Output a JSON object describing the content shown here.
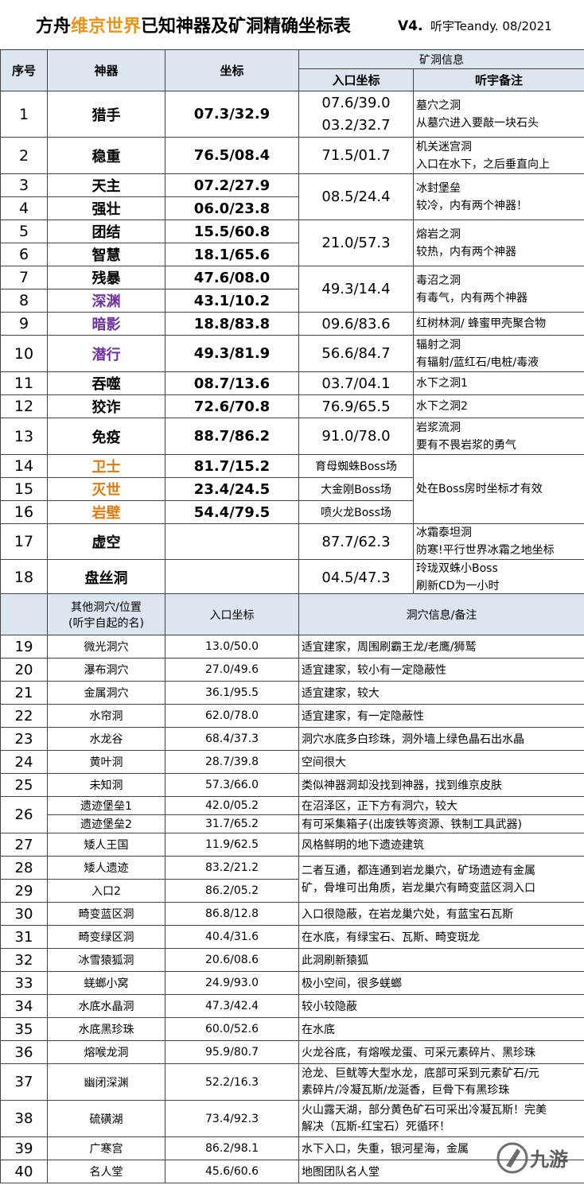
{
  "title": {
    "prefix": "方舟",
    "highlight": "维京世界",
    "suffix": "已知神器及矿洞精确坐标表",
    "version": "V4.",
    "author_date": "听宇Teandy. 08/2021"
  },
  "colors": {
    "header_bg": "#dce6f1",
    "title_highlight": "#e8961a",
    "purple": "#7030a0",
    "orange": "#e07a10"
  },
  "header1": {
    "idx": "序号",
    "weapon": "神器",
    "coord": "坐标",
    "cave_info": "矿洞信息",
    "entry": "入口坐标",
    "note": "听宇备注"
  },
  "rows": {
    "r1": {
      "idx": "1",
      "name": "猎手",
      "coord": "07.3/32.9",
      "entry_a": "07.6/39.0",
      "entry_b": "03.2/32.7",
      "note_a": "墓穴之洞",
      "note_b": "从墓穴进入要敲一块石头"
    },
    "r2": {
      "idx": "2",
      "name": "稳重",
      "coord": "76.5/08.4",
      "entry": "71.5/01.7",
      "note_a": "机关迷宫洞",
      "note_b": "入口在水下，之后垂直向上"
    },
    "r3": {
      "idx": "3",
      "name": "天主",
      "coord": "07.2/27.9"
    },
    "r4": {
      "idx": "4",
      "name": "强壮",
      "coord": "06.0/23.8"
    },
    "r34": {
      "entry": "08.5/24.4",
      "note_a": "冰封堡垒",
      "note_b": "较冷，内有两个神器！"
    },
    "r5": {
      "idx": "5",
      "name": "团结",
      "coord": "15.5/60.8"
    },
    "r6": {
      "idx": "6",
      "name": "智慧",
      "coord": "18.1/65.6"
    },
    "r56": {
      "entry": "21.0/57.3",
      "note_a": "熔岩之洞",
      "note_b": "较热，内有两个神器"
    },
    "r7": {
      "idx": "7",
      "name": "残暴",
      "coord": "47.6/08.0"
    },
    "r8": {
      "idx": "8",
      "name": "深渊",
      "coord": "43.1/10.2"
    },
    "r78": {
      "entry": "49.3/14.4",
      "note_a": "毒沼之洞",
      "note_b": "有毒气，内有两个神器"
    },
    "r9": {
      "idx": "9",
      "name": "暗影",
      "coord": "18.8/83.8",
      "entry": "09.6/83.6",
      "note": "红树林洞/ 蜂蜜甲壳聚合物"
    },
    "r10": {
      "idx": "10",
      "name": "潜行",
      "coord": "49.3/81.9",
      "entry": "56.6/84.7",
      "note_a": "辐射之洞",
      "note_b": "有辐射/蓝红石/电桩/毒液"
    },
    "r11": {
      "idx": "11",
      "name": "吞噬",
      "coord": "08.7/13.6",
      "entry": "03.7/04.1",
      "note": "水下之洞1"
    },
    "r12": {
      "idx": "12",
      "name": "狡诈",
      "coord": "72.6/70.8",
      "entry": "76.9/65.5",
      "note": "水下之洞2"
    },
    "r13": {
      "idx": "13",
      "name": "免疫",
      "coord": "88.7/86.2",
      "entry": "91.0/78.0",
      "note_a": "岩浆流洞",
      "note_b": "要有不畏岩浆的勇气"
    },
    "r14": {
      "idx": "14",
      "name": "卫士",
      "coord": "81.7/15.2",
      "entry": "育母蜘蛛Boss场"
    },
    "r15": {
      "idx": "15",
      "name": "灭世",
      "coord": "23.4/24.5",
      "entry": "大金刚Boss场"
    },
    "r16": {
      "idx": "16",
      "name": "岩壁",
      "coord": "54.4/79.5",
      "entry": "喷火龙Boss场"
    },
    "r1416": {
      "note": "处在Boss房时坐标才有效"
    },
    "r17": {
      "idx": "17",
      "name": "虚空",
      "coord": "",
      "entry": "87.7/62.3",
      "note_a": "冰霜泰坦洞",
      "note_b": "防寒!平行世界冰霜之地坐标"
    },
    "r18": {
      "idx": "18",
      "name": "盘丝洞",
      "coord": "",
      "entry": "04.5/47.3",
      "note_a": "玲珑双蛛小Boss",
      "note_b": "刷新CD为一小时"
    }
  },
  "header2": {
    "other_a": "其他洞穴/位置",
    "other_b": "(听宇自起的名)",
    "entry": "入口坐标",
    "info": "洞穴信息/备注"
  },
  "caves": {
    "c19": {
      "idx": "19",
      "name": "微光洞穴",
      "entry": "13.0/50.0",
      "note": "适宜建家，周围刷霸王龙/老鹰/狮鹫"
    },
    "c20": {
      "idx": "20",
      "name": "瀑布洞穴",
      "entry": "27.0/49.6",
      "note": "适宜建家，较小有一定隐蔽性"
    },
    "c21": {
      "idx": "21",
      "name": "金属洞穴",
      "entry": "36.1/95.5",
      "note": "适宜建家，较大"
    },
    "c22": {
      "idx": "22",
      "name": "水帘洞",
      "entry": "62.0/78.0",
      "note": "适宜建家，有一定隐蔽性"
    },
    "c23": {
      "idx": "23",
      "name": "水龙谷",
      "entry": "68.4/37.3",
      "note": "洞穴水底多白珍珠，洞外墙上绿色晶石出水晶"
    },
    "c24": {
      "idx": "24",
      "name": "黄叶洞",
      "entry": "28.7/39.8",
      "note": "空间很大"
    },
    "c25": {
      "idx": "25",
      "name": "未知洞",
      "entry": "57.3/66.0",
      "note": "类似神器洞却没找到神器，找到维京皮肤"
    },
    "c26": {
      "idx": "26",
      "name_a": "遗迹堡垒1",
      "entry_a": "42.0/05.2",
      "note_a": "在沼泽区，正下方有洞穴，较大",
      "name_b": "遗迹堡垒2",
      "entry_b": "31.7/65.2",
      "note_b": "有可采集箱子(出废铁等资源、铁制工具武器)"
    },
    "c27": {
      "idx": "27",
      "name": "矮人王国",
      "entry": "11.9/62.5",
      "note": "风格鲜明的地下遗迹建筑"
    },
    "c28": {
      "idx": "28",
      "name": "矮人遗迹",
      "entry": "83.2/21.2"
    },
    "c29": {
      "idx": "29",
      "name": "入口2",
      "entry": "86.2/05.2"
    },
    "c2829": {
      "note_a": "二者互通，都连通到岩龙巢穴，矿场遗迹有金属",
      "note_b": "矿，骨堆可出角质，岩龙巢穴有畸变蓝区洞入口"
    },
    "c30": {
      "idx": "30",
      "name": "畸变蓝区洞",
      "entry": "86.8/12.8",
      "note": "入口很隐蔽，在岩龙巢穴处，有蓝宝石瓦斯"
    },
    "c31": {
      "idx": "31",
      "name": "畸变绿区洞",
      "entry": "40.4/31.6",
      "note": "在水底，有绿宝石、瓦斯、畸变斑龙"
    },
    "c32": {
      "idx": "32",
      "name": "冰雪猿狐洞",
      "entry": "20.6/08.6",
      "note": "此洞刷新猿狐"
    },
    "c33": {
      "idx": "33",
      "name": "蜣螂小窝",
      "entry": "24.9/93.0",
      "note": "极小空间，很多蜣螂"
    },
    "c34": {
      "idx": "34",
      "name": "水底水晶洞",
      "entry": "47.3/42.4",
      "note": "较小较隐蔽"
    },
    "c35": {
      "idx": "35",
      "name": "水底黑珍珠",
      "entry": "60.0/52.6",
      "note": "在水底"
    },
    "c36": {
      "idx": "36",
      "name": "熔喉龙洞",
      "entry": "95.9/80.7",
      "note": "火龙谷底，有熔喉龙蛋、可采元素碎片、黑珍珠"
    },
    "c37": {
      "idx": "37",
      "name": "幽闭深渊",
      "entry": "52.2/16.3",
      "note_a": "沧龙、巨鱿等大型水龙，底部可采到元素矿石/元",
      "note_b": "素碎片/冷凝瓦斯/龙涎香，巨骨下有黑珍珠"
    },
    "c38": {
      "idx": "38",
      "name": "硫磺湖",
      "entry": "73.4/92.3",
      "note_a": "火山露天湖，部分黄色矿石可采出冷凝瓦斯！完美",
      "note_b": "解决（瓦斯-红宝石）死循环！"
    },
    "c39": {
      "idx": "39",
      "name": "广寒宫",
      "entry": "86.2/98.1",
      "note": "水下入口，失重，银河星海，金属"
    },
    "c40": {
      "idx": "40",
      "name": "名人堂",
      "entry": "45.6/60.6",
      "note": "地图团队名人堂"
    }
  },
  "watermark": {
    "icon": "jiuyou-logo-icon",
    "text": "九游"
  }
}
